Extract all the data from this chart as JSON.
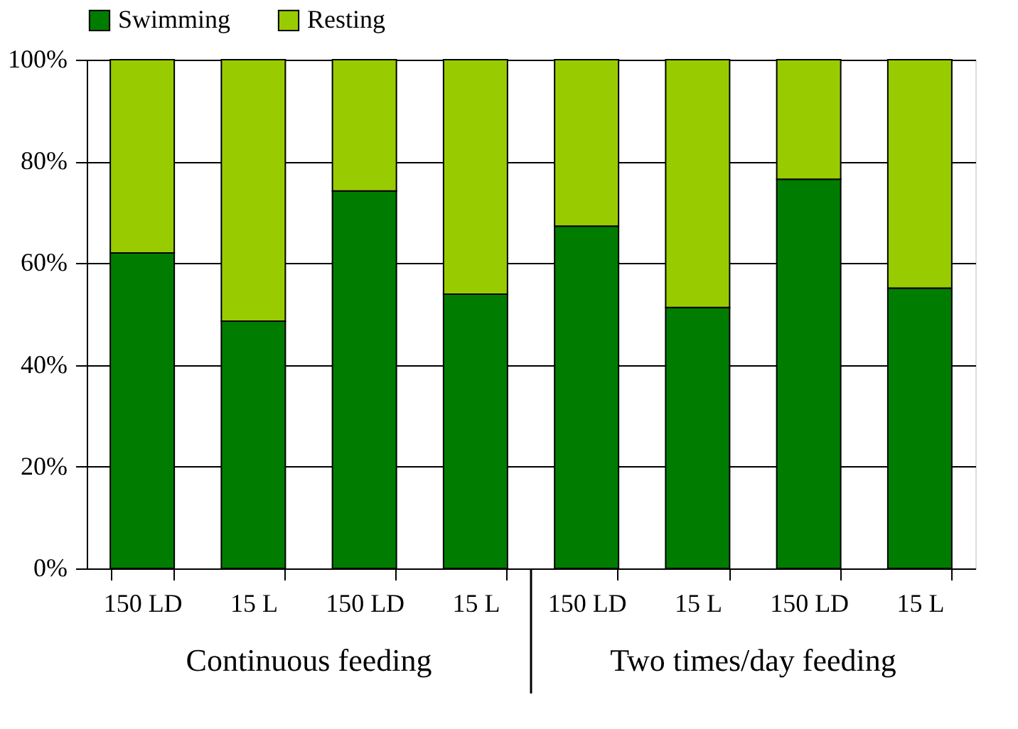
{
  "chart_data": {
    "type": "bar",
    "stacked": true,
    "categories": [
      "150 LD",
      "15 L",
      "150 LD",
      "15 L",
      "150 LD",
      "15 L",
      "150 LD",
      "15 L"
    ],
    "series": [
      {
        "name": "Swimming",
        "color": "#007d00",
        "values": [
          62.0,
          48.6,
          74.2,
          53.9,
          67.3,
          51.3,
          76.5,
          55.1
        ]
      },
      {
        "name": "Resting",
        "color": "#99cc00",
        "values": [
          38.0,
          51.4,
          25.8,
          46.1,
          32.7,
          48.7,
          23.5,
          44.9
        ]
      }
    ],
    "ylim": [
      0,
      100
    ],
    "yticks": [
      {
        "value": 0,
        "label": "0%"
      },
      {
        "value": 20,
        "label": "20%"
      },
      {
        "value": 40,
        "label": "40%"
      },
      {
        "value": 60,
        "label": "60%"
      },
      {
        "value": 80,
        "label": "80%"
      },
      {
        "value": 100,
        "label": "100%"
      }
    ],
    "annotations": [
      "Continuous feeding",
      "Two times/day feeding"
    ],
    "grid": "y",
    "legend": "top"
  }
}
